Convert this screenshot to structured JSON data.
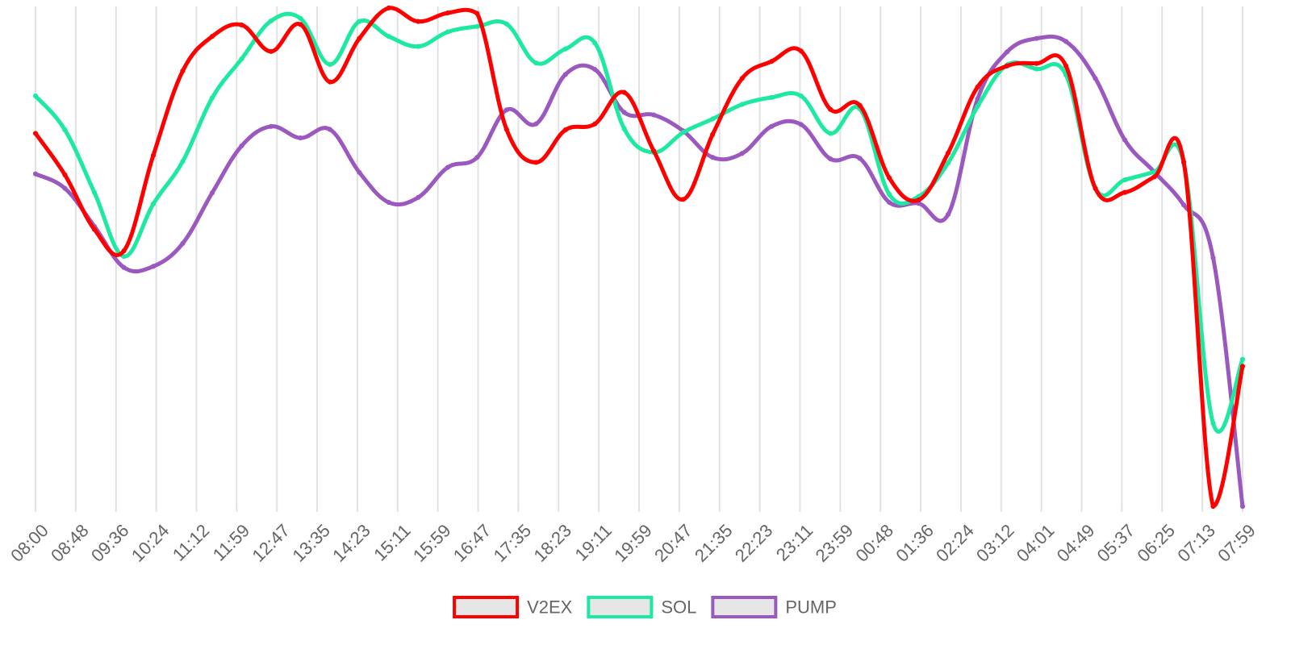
{
  "chart_data": {
    "type": "line",
    "title": "",
    "xlabel": "",
    "ylabel": "",
    "grid": {
      "vertical": true,
      "horizontal": false
    },
    "legend_position": "bottom-center",
    "y_axis": {
      "labels_shown": false,
      "ylim": [
        0,
        100
      ]
    },
    "x_tick_labels": [
      "08:00",
      "08:48",
      "09:36",
      "10:24",
      "11:12",
      "11:59",
      "12:47",
      "13:35",
      "14:23",
      "15:11",
      "15:59",
      "16:47",
      "17:35",
      "18:23",
      "19:11",
      "19:59",
      "20:47",
      "21:35",
      "22:23",
      "23:11",
      "23:59",
      "00:48",
      "01:36",
      "02:24",
      "03:12",
      "04:01",
      "04:49",
      "05:37",
      "06:25",
      "07:13",
      "07:59"
    ],
    "series": [
      {
        "name": "V2EX",
        "color": "#ff0000",
        "values": [
          74.6,
          66.3,
          55.4,
          51.1,
          70.2,
          87.1,
          94.0,
          96.3,
          91.0,
          96.4,
          84.9,
          93.6,
          99.7,
          97.0,
          98.7,
          98.6,
          75.4,
          68.8,
          75.3,
          76.5,
          82.8,
          71.1,
          61.4,
          74.4,
          85.6,
          89.0,
          91.1,
          79.4,
          80.2,
          65.7,
          61.3,
          70.7,
          83.9,
          88.1,
          88.6,
          88.1,
          63.6,
          62.8,
          65.9,
          68.9,
          0,
          28.0
        ]
      },
      {
        "name": "SOL",
        "color": "#1de9a0",
        "values": [
          82.1,
          75.3,
          62.8,
          50.0,
          60.5,
          69.0,
          81.7,
          89.5,
          97.1,
          97.6,
          88.4,
          97.0,
          94.0,
          92.0,
          94.9,
          96.0,
          96.5,
          88.7,
          91.5,
          92.7,
          75.5,
          70.8,
          74.8,
          77.5,
          80.4,
          81.8,
          82.1,
          74.6,
          79.5,
          62.4,
          62.0,
          68.7,
          80.0,
          88.3,
          87.5,
          86.3,
          63.6,
          65.3,
          66.9,
          68.7,
          16.6,
          29.4
        ]
      },
      {
        "name": "PUMP",
        "color": "#9b59c0",
        "values": [
          66.5,
          63.6,
          56.0,
          47.8,
          48.0,
          52.6,
          62.7,
          72.1,
          76.0,
          73.7,
          75.4,
          66.8,
          60.8,
          61.8,
          67.8,
          69.8,
          79.3,
          76.5,
          86.4,
          87.4,
          78.8,
          78.3,
          75.1,
          69.8,
          70.6,
          76.0,
          76.4,
          69.5,
          69.6,
          60.8,
          60.6,
          58.4,
          81.5,
          90.9,
          93.6,
          93.0,
          85.6,
          73.3,
          66.9,
          60.3,
          49.7,
          0
        ]
      }
    ]
  }
}
